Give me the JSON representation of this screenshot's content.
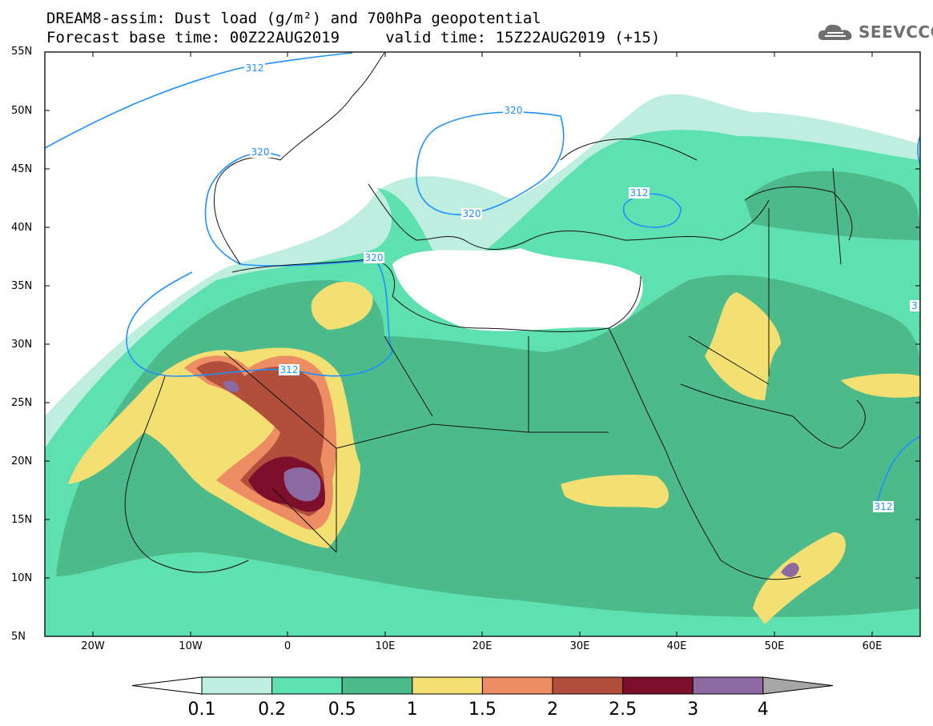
{
  "title": {
    "line1": "DREAM8-assim: Dust load (g/m²) and 700hPa geopotential",
    "line2": "Forecast base time: 00Z22AUG2019     valid time: 15Z22AUG2019 (+15)"
  },
  "logo": {
    "text": "SEEVCCC",
    "icon": "cloud-icon"
  },
  "map": {
    "lon_range": [
      -25,
      65
    ],
    "lat_range": [
      5,
      55
    ],
    "lat_labels": [
      "55N",
      "50N",
      "45N",
      "40N",
      "35N",
      "30N",
      "25N",
      "20N",
      "15N",
      "10N",
      "5N"
    ],
    "lon_labels": [
      "20W",
      "10W",
      "0",
      "10E",
      "20E",
      "30E",
      "40E",
      "50E",
      "60E"
    ],
    "contour_labels": [
      "312",
      "320",
      "320",
      "312",
      "320",
      "320",
      "312",
      "312",
      "3"
    ]
  },
  "colorbar": {
    "levels": [
      "0.1",
      "0.2",
      "0.5",
      "1",
      "1.5",
      "2",
      "2.5",
      "3",
      "4"
    ],
    "colors": [
      "#bdeedf",
      "#5fe0b0",
      "#4dba8c",
      "#f4e072",
      "#ec8d64",
      "#b24e3c",
      "#7d0f2c",
      "#8c6aa1",
      "#a6a6a6"
    ]
  }
}
